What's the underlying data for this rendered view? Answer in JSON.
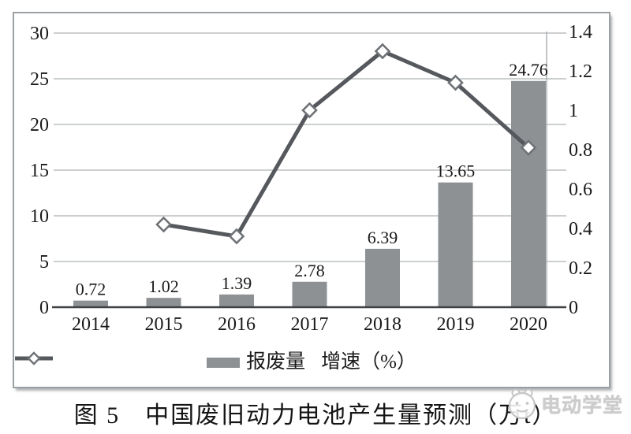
{
  "chart_data": {
    "type": "bar+line",
    "categories": [
      "2014",
      "2015",
      "2016",
      "2017",
      "2018",
      "2019",
      "2020"
    ],
    "series": [
      {
        "name": "报废量",
        "type": "bar",
        "axis": "left",
        "values": [
          0.72,
          1.02,
          1.39,
          2.78,
          6.39,
          13.65,
          24.76
        ],
        "data_labels": [
          "0.72",
          "1.02",
          "1.39",
          "2.78",
          "6.39",
          "13.65",
          "24.76"
        ]
      },
      {
        "name": "增速（%）",
        "type": "line",
        "axis": "right",
        "marker": "diamond",
        "values": [
          null,
          0.42,
          0.36,
          1.0,
          1.3,
          1.14,
          0.81
        ]
      }
    ],
    "left_axis": {
      "min": 0,
      "max": 30,
      "step": 5,
      "ticks": [
        "0",
        "5",
        "10",
        "15",
        "20",
        "25",
        "30"
      ]
    },
    "right_axis": {
      "min": 0,
      "max": 1.4,
      "step": 0.2,
      "ticks": [
        "0",
        "0.2",
        "0.4",
        "0.6",
        "0.8",
        "1",
        "1.2",
        "1.4"
      ]
    },
    "grid": true,
    "legend_position": "bottom"
  },
  "legend": {
    "bar_label": "报废量",
    "line_label": "增速（%）"
  },
  "caption": {
    "text": "图 5　中国废旧动力电池产生量预测（万t）"
  },
  "watermark": {
    "text": "电动学堂"
  },
  "colors": {
    "bar": "#8e9194",
    "line": "#55585c",
    "marker_fill": "#ffffff",
    "marker_stroke": "#6f7276",
    "grid": "#aeb2b5",
    "axis_line": "#aeb2b5",
    "baseline": "#3f4144",
    "text": "#1a1a1a",
    "frame": "#9aa0a4",
    "watermark": "#cccccc"
  }
}
